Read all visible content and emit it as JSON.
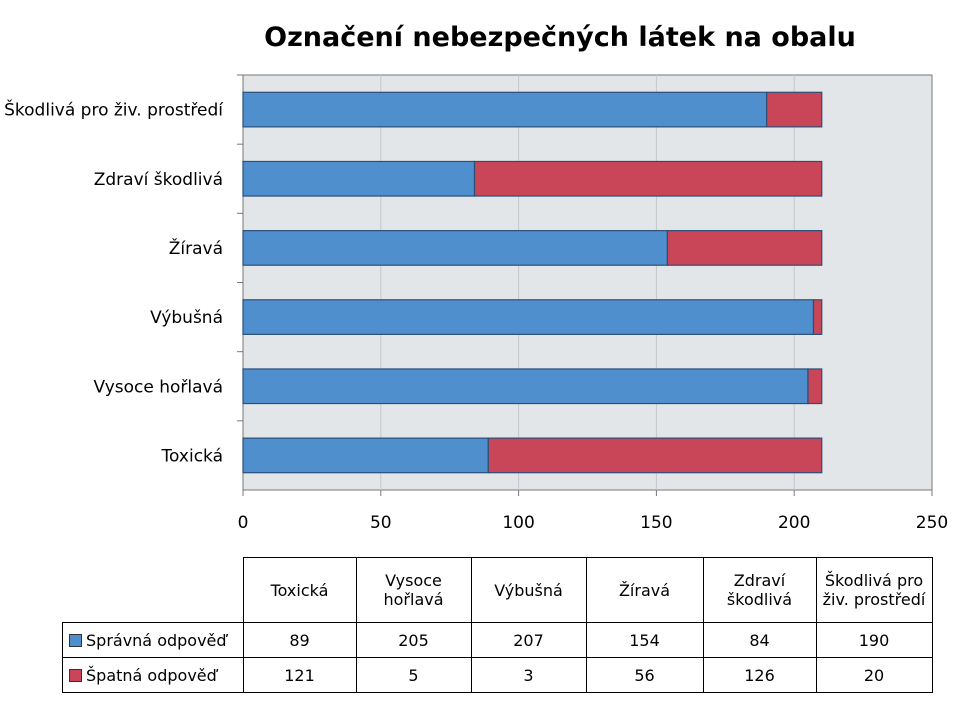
{
  "chart_data": {
    "type": "bar",
    "orientation": "horizontal",
    "stacked": true,
    "title": "Označení nebezpečných látek na obalu",
    "categories": [
      "Toxická",
      "Vysoce hořlavá",
      "Výbušná",
      "Žíravá",
      "Zdraví škodlivá",
      "Škodlivá pro živ. prostředí"
    ],
    "table_headers": [
      "Toxická",
      "Vysoce\nhořlavá",
      "Výbušná",
      "Žíravá",
      "Zdraví\nškodlivá",
      "Škodlivá pro\nživ. prostředí"
    ],
    "series": [
      {
        "name": "Správná odpověď",
        "values": [
          89,
          205,
          207,
          154,
          84,
          190
        ],
        "color": "#4f8fce"
      },
      {
        "name": "Špatná odpověď",
        "values": [
          121,
          5,
          3,
          56,
          126,
          20
        ],
        "color": "#c84657"
      }
    ],
    "xlim": [
      0,
      250
    ],
    "xticks": [
      "0",
      "50",
      "100",
      "150",
      "200",
      "250"
    ],
    "grid": true,
    "legend": "data table below chart",
    "plot_background": "#e3e6e9"
  }
}
